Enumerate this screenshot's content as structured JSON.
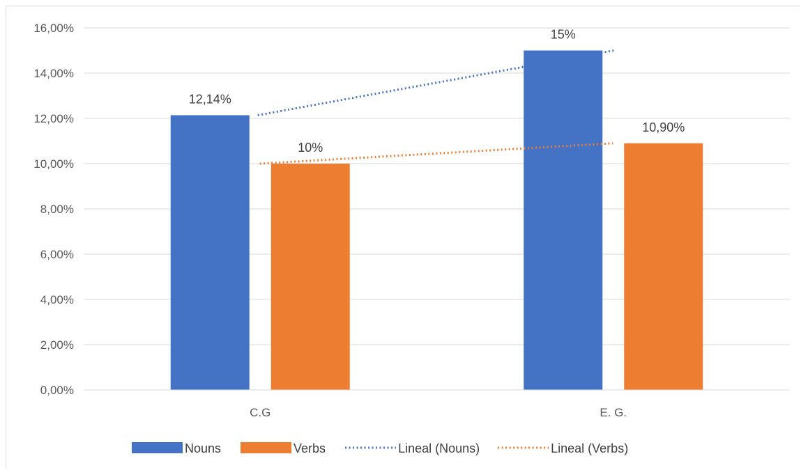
{
  "chart_data": {
    "type": "bar",
    "title": "",
    "xlabel": "",
    "ylabel": "",
    "categories": [
      "C.G",
      "E. G."
    ],
    "series": [
      {
        "name": "Nouns",
        "values": [
          12.14,
          15
        ],
        "labels": [
          "12,14%",
          "15%"
        ],
        "color": "#4472c4"
      },
      {
        "name": "Verbs",
        "values": [
          10,
          10.9
        ],
        "labels": [
          "10%",
          "10,90%"
        ],
        "color": "#ed7d31"
      }
    ],
    "trendlines": [
      {
        "name": "Lineal (Nouns)",
        "series": "Nouns",
        "style": "dotted",
        "color": "#4472c4"
      },
      {
        "name": "Lineal (Verbs)",
        "series": "Verbs",
        "style": "dotted",
        "color": "#ed7d31"
      }
    ],
    "ylim": [
      0,
      16
    ],
    "yticks": [
      0,
      2,
      4,
      6,
      8,
      10,
      12,
      14,
      16
    ],
    "ytick_labels": [
      "0,00%",
      "2,00%",
      "4,00%",
      "6,00%",
      "8,00%",
      "10,00%",
      "12,00%",
      "14,00%",
      "16,00%"
    ],
    "grid": true,
    "legend_position": "bottom"
  }
}
